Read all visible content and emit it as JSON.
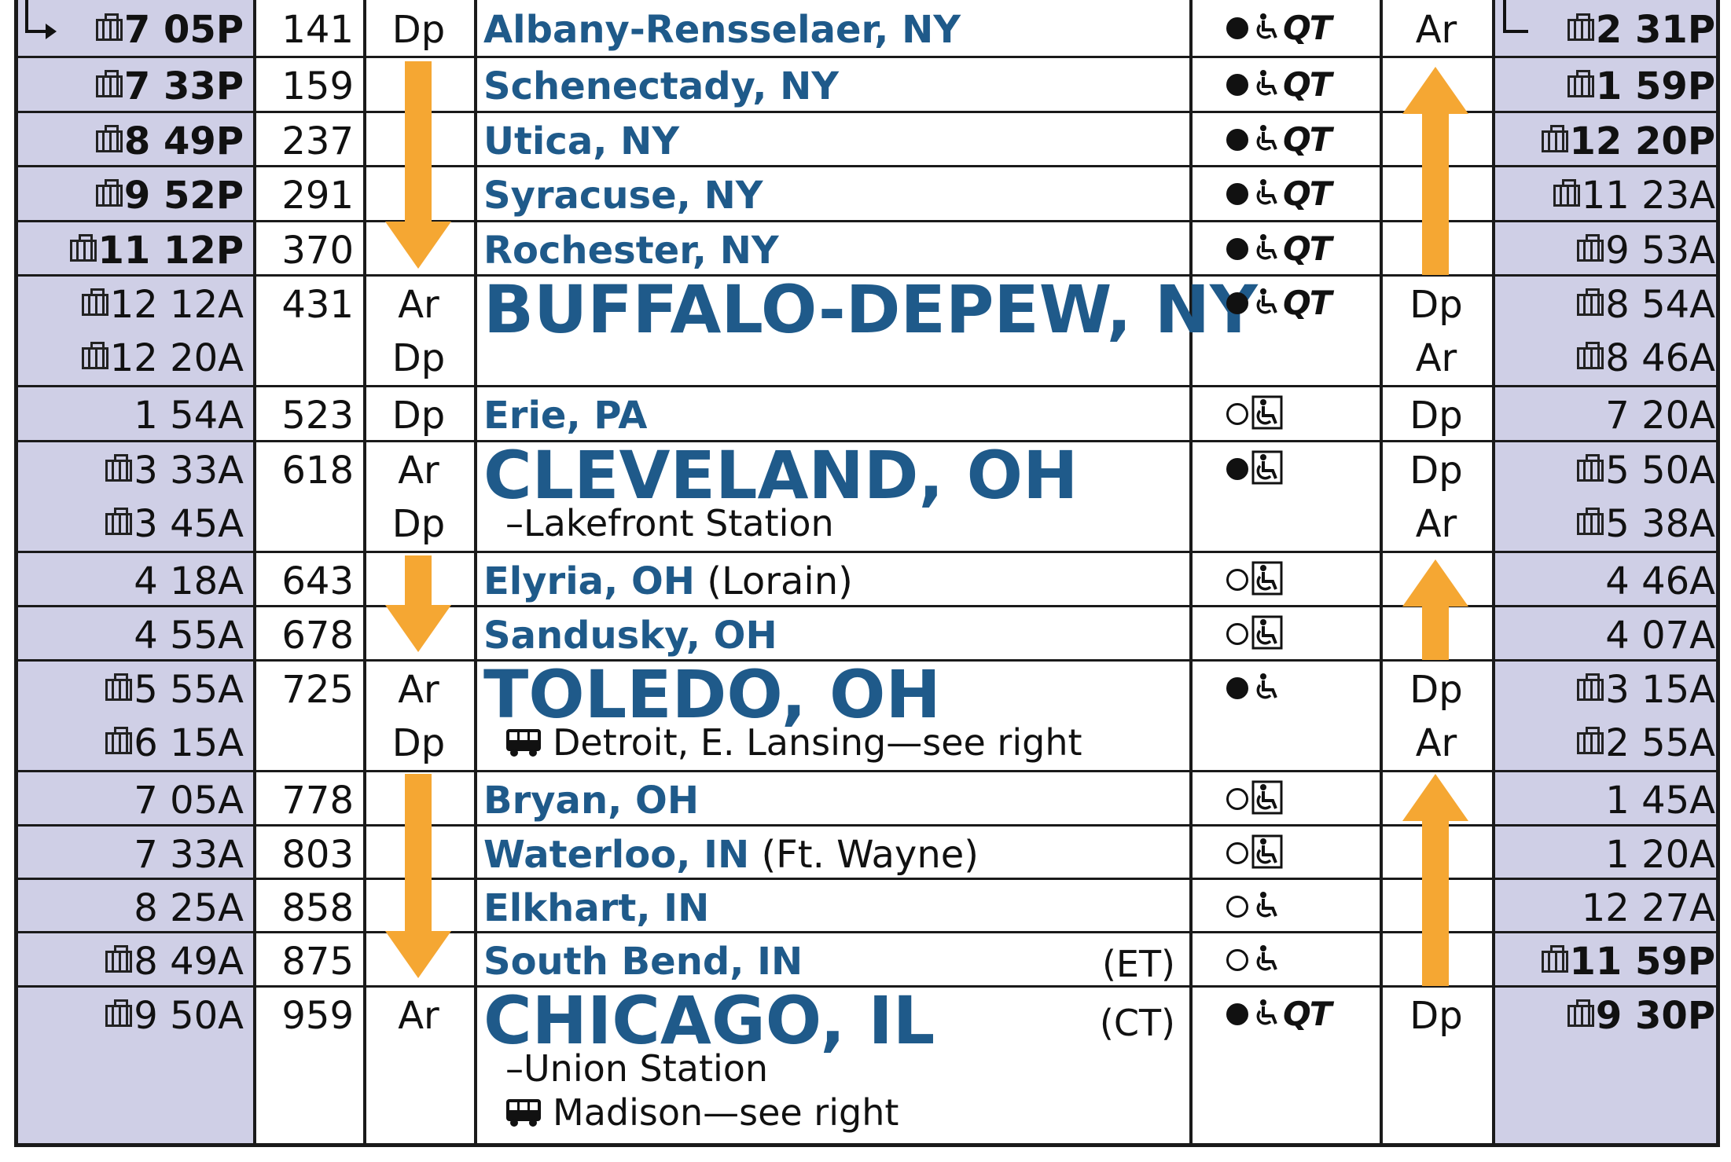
{
  "page": {
    "title": ""
  },
  "legend": {
    "symbols": {
      "staffed": "●",
      "unstaffed": "○",
      "accessible": "♿",
      "quik_trak": "QT",
      "bus": "🚌",
      "baggage": "checked-baggage-icon"
    },
    "shade_color": "#cfcfe6",
    "station_color": "#1f5a8a",
    "arrow_color": "#f5a733"
  },
  "rows": [
    {
      "left": [
        "7 05P"
      ],
      "left_bag": [
        true
      ],
      "left_bold": true,
      "mile": "141",
      "ardp_left": [
        "Dp"
      ],
      "station": "Albany-Rensselaer, NY",
      "paren": "",
      "sub": [],
      "zone": "",
      "svc": {
        "dot": "filled",
        "wheel": "open",
        "qt": true
      },
      "ardp_right": [
        "Ar"
      ],
      "right": [
        "2 31P"
      ],
      "right_bag": [
        true
      ],
      "right_bold": true
    },
    {
      "left": [
        "7 33P"
      ],
      "left_bag": [
        true
      ],
      "left_bold": true,
      "mile": "159",
      "ardp_left": [],
      "station": "Schenectady, NY",
      "paren": "",
      "sub": [],
      "zone": "",
      "svc": {
        "dot": "filled",
        "wheel": "open",
        "qt": true
      },
      "ardp_right": [],
      "right": [
        "1 59P"
      ],
      "right_bag": [
        true
      ],
      "right_bold": true
    },
    {
      "left": [
        "8 49P"
      ],
      "left_bag": [
        true
      ],
      "left_bold": true,
      "mile": "237",
      "ardp_left": [],
      "station": "Utica, NY",
      "paren": "",
      "sub": [],
      "zone": "",
      "svc": {
        "dot": "filled",
        "wheel": "open",
        "qt": true
      },
      "ardp_right": [],
      "right": [
        "12 20P"
      ],
      "right_bag": [
        true
      ],
      "right_bold": true
    },
    {
      "left": [
        "9 52P"
      ],
      "left_bag": [
        true
      ],
      "left_bold": true,
      "mile": "291",
      "ardp_left": [],
      "station": "Syracuse, NY",
      "paren": "",
      "sub": [],
      "zone": "",
      "svc": {
        "dot": "filled",
        "wheel": "open",
        "qt": true
      },
      "ardp_right": [],
      "right": [
        "11 23A"
      ],
      "right_bag": [
        true
      ],
      "right_bold": false
    },
    {
      "left": [
        "11 12P"
      ],
      "left_bag": [
        true
      ],
      "left_bold": true,
      "mile": "370",
      "ardp_left": [],
      "station": "Rochester, NY",
      "paren": "",
      "sub": [],
      "zone": "",
      "svc": {
        "dot": "filled",
        "wheel": "open",
        "qt": true
      },
      "ardp_right": [],
      "right": [
        "9 53A"
      ],
      "right_bag": [
        true
      ],
      "right_bold": false
    },
    {
      "left": [
        "12 12A",
        "12 20A"
      ],
      "left_bag": [
        true,
        true
      ],
      "left_bold": false,
      "mile": "431",
      "ardp_left": [
        "Ar",
        "Dp"
      ],
      "station": "BUFFALO-DEPEW, NY",
      "major": true,
      "paren": "",
      "sub": [],
      "zone": "",
      "svc": {
        "dot": "filled",
        "wheel": "open",
        "qt": true
      },
      "ardp_right": [
        "Dp",
        "Ar"
      ],
      "right": [
        "8 54A",
        "8 46A"
      ],
      "right_bag": [
        true,
        true
      ],
      "right_bold": false
    },
    {
      "left": [
        "1 54A"
      ],
      "left_bag": [
        false
      ],
      "left_bold": false,
      "mile": "523",
      "ardp_left": [
        "Dp"
      ],
      "station": "Erie, PA",
      "paren": "",
      "sub": [],
      "zone": "",
      "svc": {
        "dot": "open",
        "wheel": "boxed",
        "qt": false
      },
      "ardp_right": [
        "Dp"
      ],
      "right": [
        "7 20A"
      ],
      "right_bag": [
        false
      ],
      "right_bold": false
    },
    {
      "left": [
        "3 33A",
        "3 45A"
      ],
      "left_bag": [
        true,
        true
      ],
      "left_bold": false,
      "mile": "618",
      "ardp_left": [
        "Ar",
        "Dp"
      ],
      "station": "CLEVELAND, OH",
      "major": true,
      "paren": "",
      "sub": [
        "–Lakefront Station"
      ],
      "sub_bus": [
        false
      ],
      "zone": "",
      "svc": {
        "dot": "filled",
        "wheel": "boxed",
        "qt": false
      },
      "ardp_right": [
        "Dp",
        "Ar"
      ],
      "right": [
        "5 50A",
        "5 38A"
      ],
      "right_bag": [
        true,
        true
      ],
      "right_bold": false
    },
    {
      "left": [
        "4 18A"
      ],
      "left_bag": [
        false
      ],
      "left_bold": false,
      "mile": "643",
      "ardp_left": [],
      "station": "Elyria, OH",
      "paren": "(Lorain)",
      "sub": [],
      "zone": "",
      "svc": {
        "dot": "open",
        "wheel": "boxed",
        "qt": false
      },
      "ardp_right": [],
      "right": [
        "4 46A"
      ],
      "right_bag": [
        false
      ],
      "right_bold": false
    },
    {
      "left": [
        "4 55A"
      ],
      "left_bag": [
        false
      ],
      "left_bold": false,
      "mile": "678",
      "ardp_left": [],
      "station": "Sandusky, OH",
      "paren": "",
      "sub": [],
      "zone": "",
      "svc": {
        "dot": "open",
        "wheel": "boxed",
        "qt": false
      },
      "ardp_right": [],
      "right": [
        "4 07A"
      ],
      "right_bag": [
        false
      ],
      "right_bold": false
    },
    {
      "left": [
        "5 55A",
        "6 15A"
      ],
      "left_bag": [
        true,
        true
      ],
      "left_bold": false,
      "mile": "725",
      "ardp_left": [
        "Ar",
        "Dp"
      ],
      "station": "TOLEDO, OH",
      "major": true,
      "paren": "",
      "sub": [
        "Detroit, E. Lansing—see right"
      ],
      "sub_bus": [
        true
      ],
      "zone": "",
      "svc": {
        "dot": "filled",
        "wheel": "open",
        "qt": false
      },
      "ardp_right": [
        "Dp",
        "Ar"
      ],
      "right": [
        "3 15A",
        "2 55A"
      ],
      "right_bag": [
        true,
        true
      ],
      "right_bold": false
    },
    {
      "left": [
        "7 05A"
      ],
      "left_bag": [
        false
      ],
      "left_bold": false,
      "mile": "778",
      "ardp_left": [],
      "station": "Bryan, OH",
      "paren": "",
      "sub": [],
      "zone": "",
      "svc": {
        "dot": "open",
        "wheel": "boxed",
        "qt": false
      },
      "ardp_right": [],
      "right": [
        "1 45A"
      ],
      "right_bag": [
        false
      ],
      "right_bold": false
    },
    {
      "left": [
        "7 33A"
      ],
      "left_bag": [
        false
      ],
      "left_bold": false,
      "mile": "803",
      "ardp_left": [],
      "station": "Waterloo, IN",
      "paren": "(Ft. Wayne)",
      "sub": [],
      "zone": "",
      "svc": {
        "dot": "open",
        "wheel": "boxed",
        "qt": false
      },
      "ardp_right": [],
      "right": [
        "1 20A"
      ],
      "right_bag": [
        false
      ],
      "right_bold": false
    },
    {
      "left": [
        "8 25A"
      ],
      "left_bag": [
        false
      ],
      "left_bold": false,
      "mile": "858",
      "ardp_left": [],
      "station": "Elkhart, IN",
      "paren": "",
      "sub": [],
      "zone": "",
      "svc": {
        "dot": "open",
        "wheel": "open",
        "qt": false
      },
      "ardp_right": [],
      "right": [
        "12 27A"
      ],
      "right_bag": [
        false
      ],
      "right_bold": false
    },
    {
      "left": [
        "8 49A"
      ],
      "left_bag": [
        true
      ],
      "left_bold": false,
      "mile": "875",
      "ardp_left": [],
      "station": "South Bend, IN",
      "paren": "",
      "sub": [],
      "zone": "(ET)",
      "svc": {
        "dot": "open",
        "wheel": "open",
        "qt": false
      },
      "ardp_right": [],
      "right": [
        "11 59P"
      ],
      "right_bag": [
        true
      ],
      "right_bold": true
    },
    {
      "left": [
        "9 50A"
      ],
      "left_bag": [
        true
      ],
      "left_bold": false,
      "mile": "959",
      "ardp_left": [
        "Ar"
      ],
      "station": "CHICAGO, IL",
      "major": true,
      "paren": "",
      "sub": [
        "–Union Station",
        "Madison—see right"
      ],
      "sub_bus": [
        false,
        true
      ],
      "zone": "(CT)",
      "svc": {
        "dot": "filled",
        "wheel": "open",
        "qt": true
      },
      "ardp_right": [
        "Dp"
      ],
      "right": [
        "9 30P"
      ],
      "right_bag": [
        true
      ],
      "right_bold": true
    }
  ]
}
